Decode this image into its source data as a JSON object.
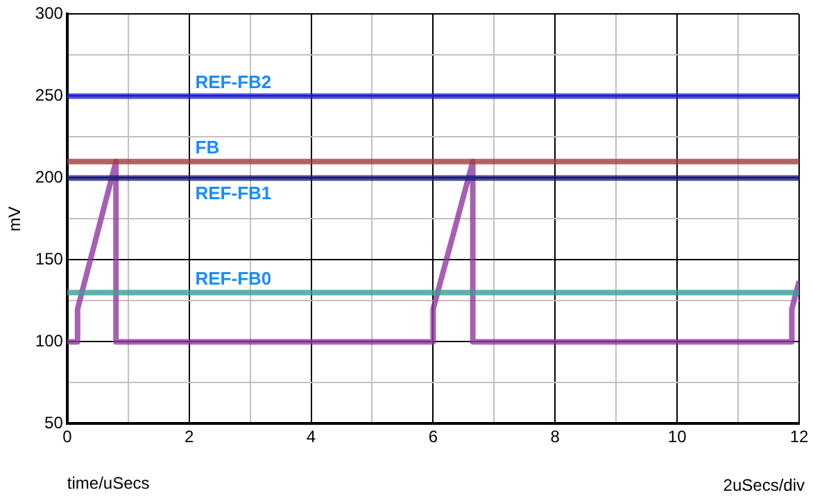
{
  "chart_data": {
    "type": "line",
    "xlabel": "time/uSecs",
    "ylabel": "mV",
    "annotations": [
      "2uSecs/div"
    ],
    "xlim": [
      0,
      12
    ],
    "xticks": [
      0,
      {
        "value": 1,
        "label": null
      },
      2,
      {
        "value": 3,
        "label": null
      },
      4,
      {
        "value": 5,
        "label": null
      },
      6,
      {
        "value": 7,
        "label": null
      },
      8,
      {
        "value": 9,
        "label": null
      },
      10,
      {
        "value": 11,
        "label": null
      },
      12
    ],
    "ylim": [
      50,
      300
    ],
    "yticks": [
      50,
      {
        "value": 75,
        "label": null
      },
      100,
      {
        "value": 125,
        "label": null
      },
      150,
      {
        "value": 175,
        "label": null
      },
      200,
      {
        "value": 225,
        "label": null
      },
      250,
      {
        "value": 275,
        "label": null
      },
      300
    ],
    "grid": true,
    "legend": false,
    "marker": "none",
    "line_style": "solid",
    "series": [
      {
        "name": "REF-FB2",
        "color": "#2222dd",
        "x": [
          0,
          12
        ],
        "values": [
          250,
          250
        ]
      },
      {
        "name": "FB",
        "color": "#a03c3c",
        "x": [
          0,
          12
        ],
        "values": [
          210,
          210
        ]
      },
      {
        "name": "REF-FB1",
        "color": "#1c1c80",
        "x": [
          0,
          12
        ],
        "values": [
          200,
          200
        ]
      },
      {
        "name": "REF-FB0",
        "color": "#3a9c9c",
        "x": [
          0,
          12
        ],
        "values": [
          130,
          130
        ]
      },
      {
        "color": "#9038a0",
        "x": [
          0,
          0.17,
          0.17,
          0.8,
          0.8,
          6.0,
          6.0,
          6.65,
          6.65,
          11.88,
          11.88,
          12
        ],
        "values": [
          100,
          100,
          120,
          210,
          100,
          100,
          120,
          210,
          100,
          100,
          120,
          137
        ]
      }
    ]
  }
}
